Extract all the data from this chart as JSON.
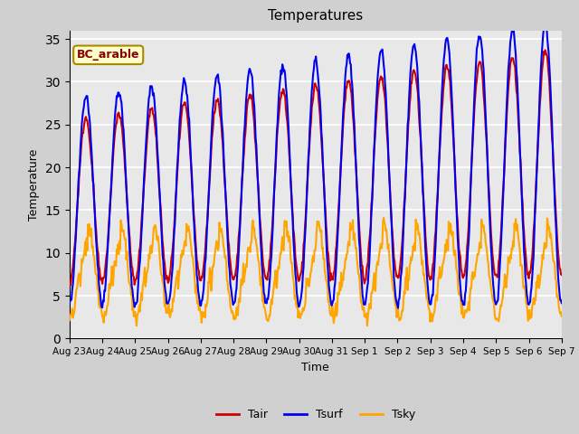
{
  "title": "Temperatures",
  "xlabel": "Time",
  "ylabel": "Temperature",
  "ylim": [
    0,
    36
  ],
  "yticks": [
    0,
    5,
    10,
    15,
    20,
    25,
    30,
    35
  ],
  "legend_labels": [
    "Tair",
    "Tsurf",
    "Tsky"
  ],
  "tair_color": "#cc0000",
  "tsurf_color": "#0000ee",
  "tsky_color": "#ffa500",
  "annotation_text": "BC_arable",
  "annotation_bg": "#ffffcc",
  "annotation_border": "#aa8800",
  "fig_bg": "#d0d0d0",
  "plot_bg": "#e8e8e8",
  "grid_color": "#ffffff",
  "line_width": 1.5,
  "x_tick_labels": [
    "Aug 23",
    "Aug 24",
    "Aug 25",
    "Aug 26",
    "Aug 27",
    "Aug 28",
    "Aug 29",
    "Aug 30",
    "Aug 31",
    "Sep 1",
    "Sep 2",
    "Sep 3",
    "Sep 4",
    "Sep 5",
    "Sep 6",
    "Sep 7"
  ],
  "n_days": 15
}
